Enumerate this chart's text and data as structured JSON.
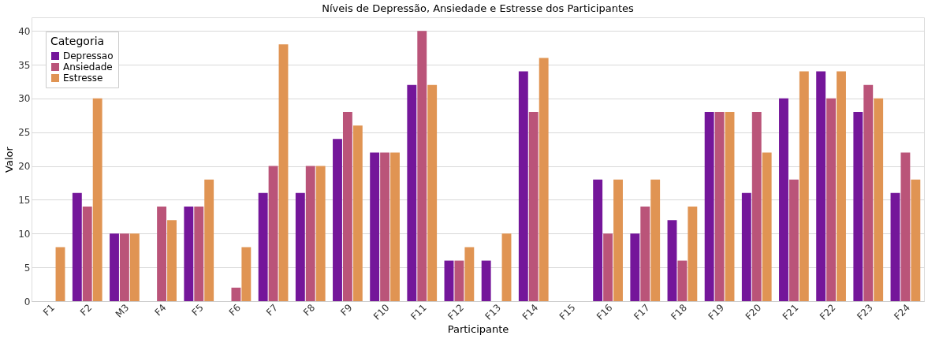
{
  "chart_data": {
    "type": "bar",
    "title": "Níveis de Depressão, Ansiedade e Estresse dos Participantes",
    "xlabel": "Participante",
    "ylabel": "Valor",
    "legend_title": "Categoria",
    "categories": [
      "F1",
      "F2",
      "M3",
      "F4",
      "F5",
      "F6",
      "F7",
      "F8",
      "F9",
      "F10",
      "F11",
      "F12",
      "F13",
      "F14",
      "F15",
      "F16",
      "F17",
      "F18",
      "F19",
      "F20",
      "F21",
      "F22",
      "F23",
      "F24"
    ],
    "series": [
      {
        "name": "Depressao",
        "color": "#74169a",
        "values": [
          0,
          16,
          10,
          0,
          14,
          0,
          16,
          16,
          24,
          22,
          32,
          6,
          6,
          34,
          0,
          18,
          10,
          12,
          28,
          16,
          30,
          34,
          28,
          16
        ]
      },
      {
        "name": "Ansiedade",
        "color": "#ba5479",
        "values": [
          0,
          14,
          10,
          14,
          14,
          2,
          20,
          20,
          28,
          22,
          40,
          6,
          0,
          28,
          0,
          10,
          14,
          6,
          28,
          28,
          18,
          30,
          32,
          22
        ]
      },
      {
        "name": "Estresse",
        "color": "#e09453",
        "values": [
          8,
          30,
          10,
          12,
          18,
          8,
          38,
          20,
          26,
          22,
          32,
          8,
          10,
          36,
          0,
          18,
          18,
          14,
          28,
          22,
          34,
          34,
          30,
          18
        ]
      }
    ],
    "ylim": [
      0,
      42
    ],
    "yticks": [
      0,
      5,
      10,
      15,
      20,
      25,
      30,
      35,
      40
    ],
    "grid": "y",
    "legend": "top left"
  }
}
